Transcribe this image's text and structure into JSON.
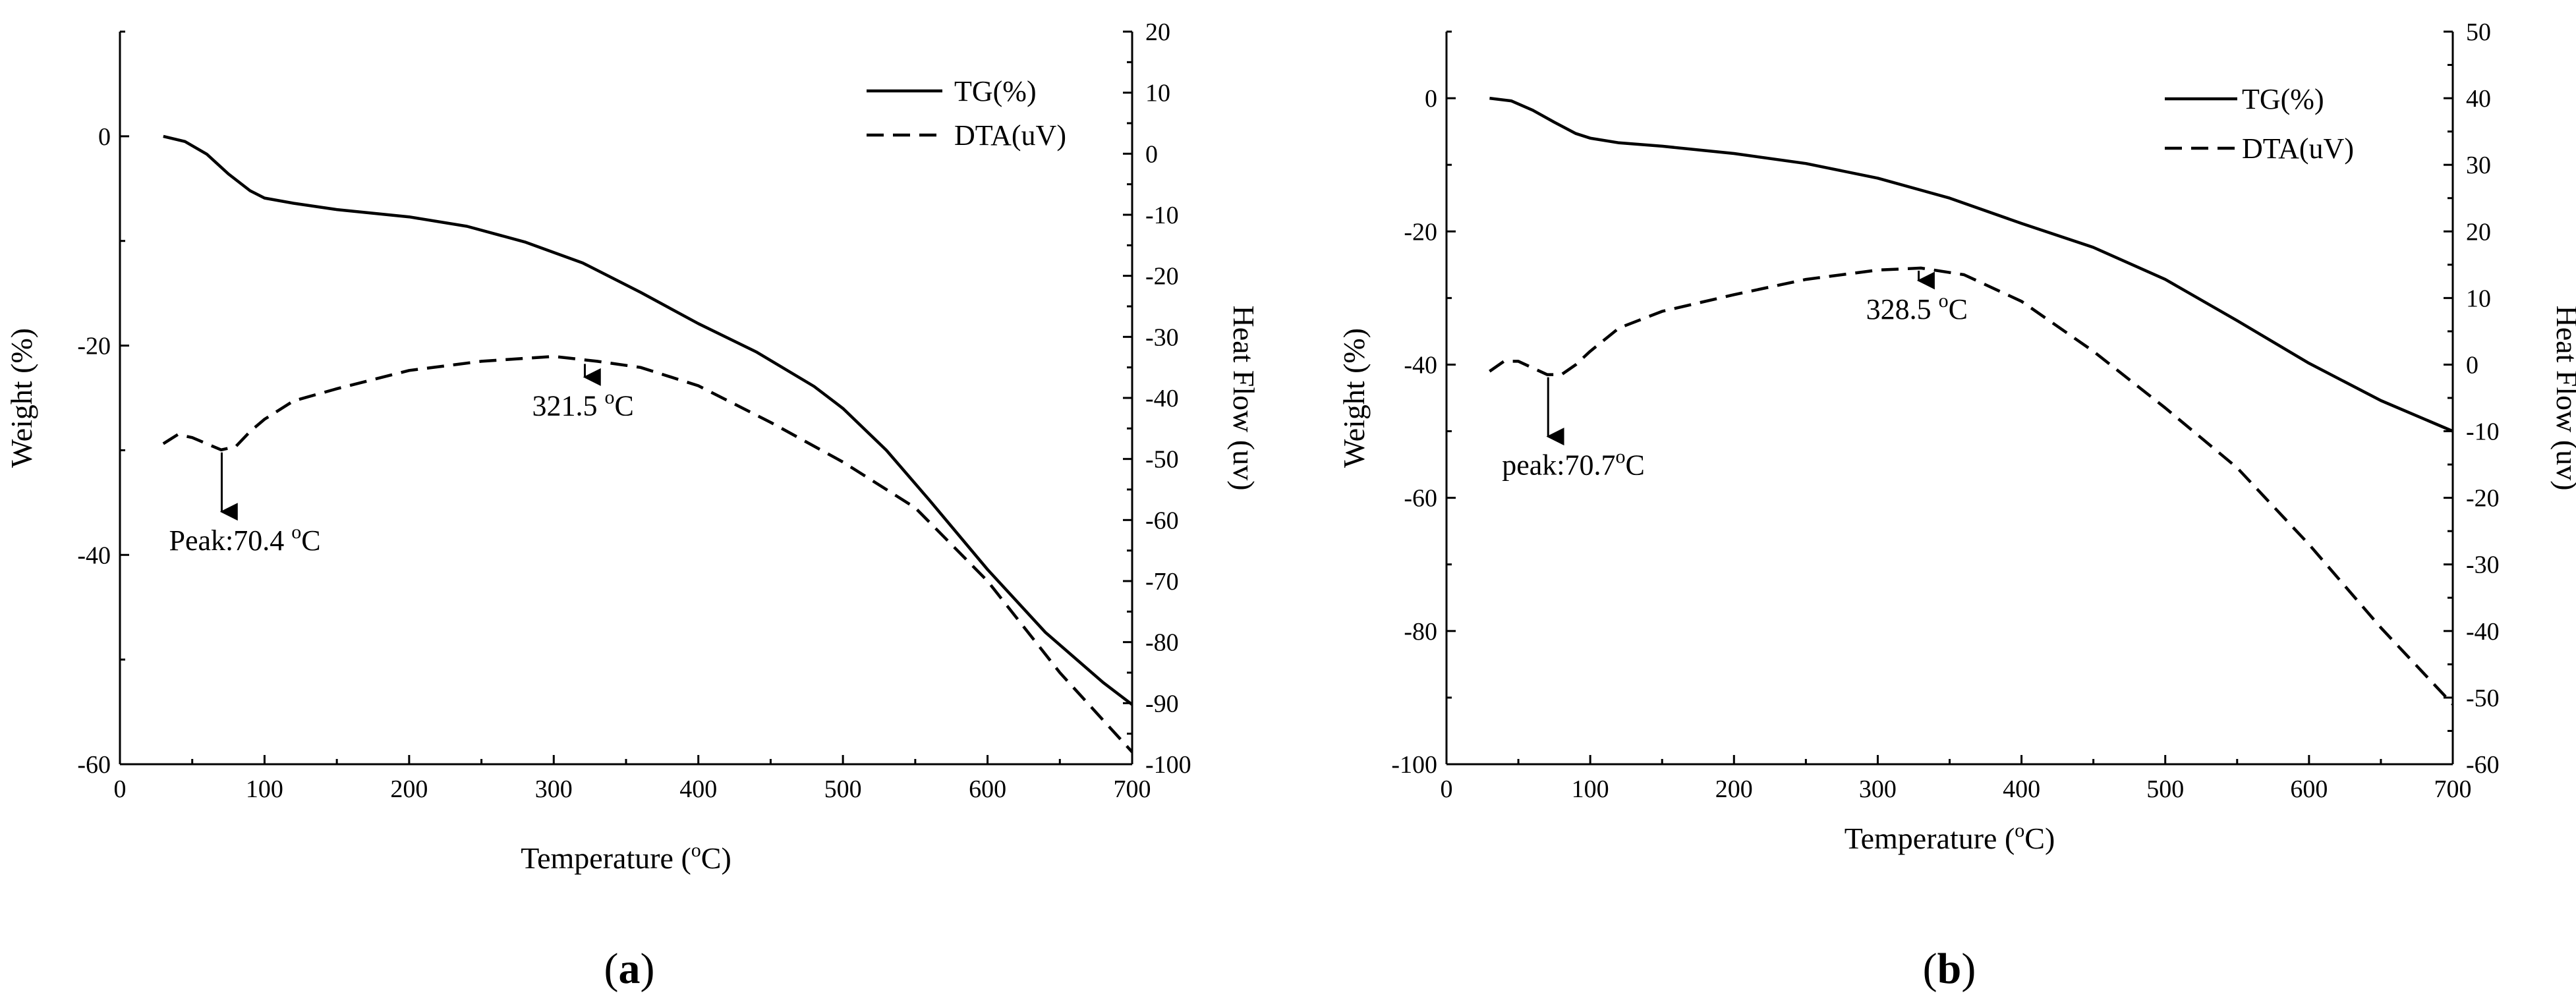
{
  "chart_data": [
    {
      "type": "line",
      "panel_label": "a",
      "xlabel": "Temperature (",
      "xlabel_sup": "o",
      "xlabel_end": "C)",
      "ylabel_left": "Weight (%)",
      "ylabel_right": "Heat Flow (uv)",
      "xlim": [
        0,
        700
      ],
      "ylim_left": [
        -60,
        10
      ],
      "ylim_right": [
        -100,
        20
      ],
      "x_ticks": [
        0,
        100,
        200,
        300,
        400,
        500,
        600,
        700
      ],
      "y_left_ticks": [
        0,
        -20,
        -40,
        -60
      ],
      "y_right_ticks": [
        20,
        10,
        0,
        -10,
        -20,
        -30,
        -40,
        -50,
        -60,
        -70,
        -80,
        -90,
        -100
      ],
      "legend": {
        "position": "top-right",
        "entries": [
          "TG(%)",
          "DTA(uV)"
        ]
      },
      "series": [
        {
          "name": "TG(%)",
          "axis": "left",
          "style": "solid",
          "x": [
            30,
            45,
            60,
            75,
            90,
            100,
            120,
            150,
            200,
            240,
            280,
            320,
            360,
            400,
            440,
            480,
            500,
            530,
            560,
            600,
            640,
            680,
            700
          ],
          "y": [
            0,
            -0.5,
            -1.7,
            -3.6,
            -5.2,
            -5.9,
            -6.4,
            -7.0,
            -7.7,
            -8.6,
            -10.1,
            -12.1,
            -14.9,
            -17.9,
            -20.6,
            -23.9,
            -26.0,
            -30.0,
            -34.8,
            -41.4,
            -47.4,
            -52.2,
            -54.3
          ]
        },
        {
          "name": "DTA(uV)",
          "axis": "right",
          "style": "dashed",
          "x": [
            30,
            40,
            50,
            60,
            70,
            80,
            90,
            100,
            120,
            150,
            200,
            250,
            300,
            330,
            360,
            400,
            450,
            500,
            550,
            600,
            650,
            700
          ],
          "y": [
            -47.5,
            -46,
            -46.5,
            -47.5,
            -48.5,
            -48,
            -45.5,
            -43.5,
            -40.5,
            -38.5,
            -35.5,
            -34,
            -33.2,
            -34,
            -35,
            -38,
            -44,
            -50.5,
            -58,
            -70,
            -85,
            -98
          ]
        }
      ],
      "annotations": [
        {
          "prefix": "Peak:70.4 ",
          "sup": "o",
          "suffix": "C",
          "x": 70.4,
          "y_right": -48.5,
          "arrow": "down"
        },
        {
          "prefix": "321.5 ",
          "sup": "o",
          "suffix": "C",
          "x": 321.5,
          "y_right": -34,
          "arrow": "down"
        }
      ]
    },
    {
      "type": "line",
      "panel_label": "b",
      "xlabel": "Temperature (",
      "xlabel_sup": "o",
      "xlabel_end": "C)",
      "ylabel_left": "Weight (%)",
      "ylabel_right": "Heat Flow (uv)",
      "xlim": [
        0,
        700
      ],
      "ylim_left": [
        -100,
        10
      ],
      "ylim_right": [
        -60,
        50
      ],
      "x_ticks": [
        0,
        100,
        200,
        300,
        400,
        500,
        600,
        700
      ],
      "y_left_ticks": [
        0,
        -20,
        -40,
        -60,
        -80,
        -100
      ],
      "y_right_ticks": [
        50,
        40,
        30,
        20,
        10,
        0,
        -10,
        -20,
        -30,
        -40,
        -50,
        -60
      ],
      "legend": {
        "position": "top-right",
        "entries": [
          "TG(%)",
          "DTA(uV)"
        ]
      },
      "series": [
        {
          "name": "TG(%)",
          "axis": "left",
          "style": "solid",
          "x": [
            30,
            45,
            60,
            75,
            90,
            100,
            120,
            150,
            200,
            250,
            300,
            350,
            400,
            450,
            500,
            550,
            600,
            650,
            700
          ],
          "y": [
            0,
            -0.4,
            -1.8,
            -3.6,
            -5.3,
            -6.0,
            -6.7,
            -7.2,
            -8.3,
            -9.8,
            -12.0,
            -15.0,
            -18.8,
            -22.4,
            -27.2,
            -33.4,
            -39.8,
            -45.4,
            -50.0
          ]
        },
        {
          "name": "DTA(uV)",
          "axis": "right",
          "style": "dashed",
          "x": [
            30,
            40,
            50,
            60,
            70,
            80,
            90,
            100,
            120,
            150,
            200,
            250,
            300,
            330,
            360,
            400,
            450,
            500,
            550,
            600,
            650,
            700
          ],
          "y": [
            -1,
            0.5,
            0.5,
            -0.5,
            -1.5,
            -1.5,
            0,
            2,
            5.5,
            8,
            10.5,
            12.8,
            14.2,
            14.5,
            13.5,
            9.5,
            2,
            -6.5,
            -15.5,
            -27,
            -39.5,
            -51
          ]
        }
      ],
      "annotations": [
        {
          "prefix": "peak:70.7",
          "sup": "o",
          "suffix": "C",
          "x": 70.7,
          "y_right": -1.5,
          "arrow": "down"
        },
        {
          "prefix": "328.5 ",
          "sup": "o",
          "suffix": "C",
          "x": 328.5,
          "y_right": 14.5,
          "arrow": "down"
        }
      ]
    }
  ]
}
